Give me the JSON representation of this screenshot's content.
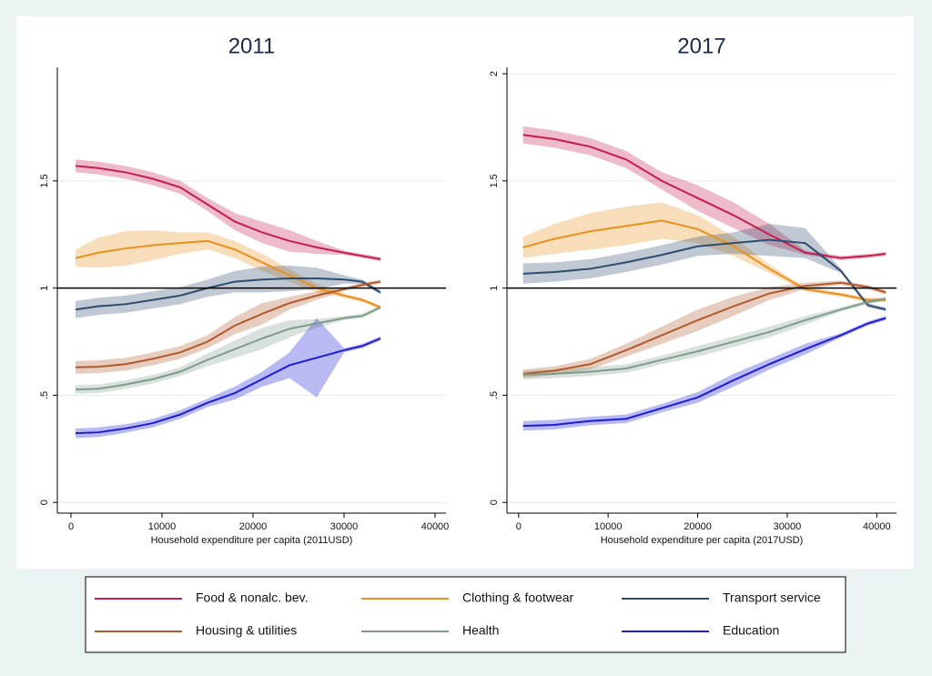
{
  "chart_data": [
    {
      "type": "line",
      "title": "2011",
      "xlabel": "Household expenditure per capita (2011USD)",
      "xlim": [
        -1500,
        41200
      ],
      "ylim": [
        -0.05,
        2.03
      ],
      "xticks": [
        0,
        10000,
        20000,
        30000,
        40000
      ],
      "yticks": [
        0,
        {
          "value": 0.5,
          "label": ".5"
        },
        1,
        1.5
      ],
      "hline": 1,
      "grid": true,
      "x": [
        500,
        3000,
        6000,
        9000,
        12000,
        15000,
        18000,
        21000,
        24000,
        27000,
        30000,
        32000,
        34000
      ],
      "series": [
        {
          "name": "Food & nonalc. bev.",
          "color": "#c41e4f",
          "values": [
            1.57,
            1.56,
            1.54,
            1.51,
            1.47,
            1.39,
            1.31,
            1.26,
            1.22,
            1.19,
            1.165,
            1.15,
            1.135
          ],
          "lower": [
            1.54,
            1.53,
            1.51,
            1.48,
            1.44,
            1.36,
            1.27,
            1.21,
            1.17,
            1.16,
            1.155,
            1.14,
            1.125
          ],
          "upper": [
            1.6,
            1.59,
            1.57,
            1.54,
            1.5,
            1.42,
            1.35,
            1.31,
            1.27,
            1.22,
            1.175,
            1.16,
            1.145
          ]
        },
        {
          "name": "Clothing & footwear",
          "color": "#e8901a",
          "values": [
            1.14,
            1.165,
            1.185,
            1.2,
            1.21,
            1.22,
            1.18,
            1.12,
            1.06,
            1.0,
            0.965,
            0.945,
            0.91
          ],
          "lower": [
            1.1,
            1.095,
            1.105,
            1.13,
            1.16,
            1.18,
            1.14,
            1.08,
            1.03,
            0.98,
            0.955,
            0.935,
            0.9
          ],
          "upper": [
            1.18,
            1.235,
            1.265,
            1.27,
            1.26,
            1.26,
            1.22,
            1.16,
            1.09,
            1.02,
            0.975,
            0.955,
            0.92
          ]
        },
        {
          "name": "Transport service",
          "color": "#2e4c6d",
          "values": [
            0.9,
            0.915,
            0.925,
            0.945,
            0.965,
            1.0,
            1.03,
            1.04,
            1.045,
            1.045,
            1.04,
            1.03,
            0.98
          ],
          "lower": [
            0.86,
            0.875,
            0.885,
            0.905,
            0.925,
            0.96,
            0.98,
            0.98,
            0.985,
            0.995,
            1.02,
            1.02,
            0.97
          ],
          "upper": [
            0.94,
            0.955,
            0.965,
            0.985,
            1.005,
            1.04,
            1.08,
            1.1,
            1.105,
            1.095,
            1.06,
            1.04,
            0.99
          ]
        },
        {
          "name": "Housing & utilities",
          "color": "#b05a2c",
          "values": [
            0.63,
            0.633,
            0.645,
            0.67,
            0.7,
            0.75,
            0.825,
            0.88,
            0.93,
            0.965,
            0.995,
            1.015,
            1.03
          ],
          "lower": [
            0.6,
            0.603,
            0.615,
            0.64,
            0.67,
            0.72,
            0.785,
            0.83,
            0.9,
            0.945,
            0.985,
            1.005,
            1.02
          ],
          "upper": [
            0.66,
            0.663,
            0.675,
            0.7,
            0.73,
            0.78,
            0.865,
            0.93,
            0.96,
            0.985,
            1.005,
            1.025,
            1.04
          ]
        },
        {
          "name": "Health",
          "color": "#7f9c8a",
          "values": [
            0.527,
            0.53,
            0.55,
            0.575,
            0.61,
            0.665,
            0.715,
            0.765,
            0.81,
            0.835,
            0.86,
            0.87,
            0.91
          ],
          "lower": [
            0.507,
            0.51,
            0.53,
            0.555,
            0.59,
            0.635,
            0.675,
            0.715,
            0.77,
            0.815,
            0.85,
            0.86,
            0.9
          ],
          "upper": [
            0.547,
            0.55,
            0.57,
            0.595,
            0.63,
            0.695,
            0.755,
            0.815,
            0.85,
            0.855,
            0.87,
            0.88,
            0.92
          ]
        },
        {
          "name": "Education",
          "color": "#1c1cd6",
          "values": [
            0.323,
            0.327,
            0.345,
            0.37,
            0.41,
            0.465,
            0.51,
            0.575,
            0.64,
            0.675,
            0.71,
            0.73,
            0.765
          ],
          "lower": [
            0.3,
            0.305,
            0.325,
            0.35,
            0.39,
            0.445,
            0.48,
            0.54,
            0.58,
            0.49,
            0.7,
            0.72,
            0.755
          ],
          "upper": [
            0.345,
            0.35,
            0.365,
            0.39,
            0.43,
            0.485,
            0.54,
            0.61,
            0.7,
            0.86,
            0.72,
            0.74,
            0.775
          ]
        }
      ]
    },
    {
      "type": "line",
      "title": "2017",
      "xlabel": "Household expenditure per capita (2017USD)",
      "xlim": [
        -1300,
        42200
      ],
      "ylim": [
        -0.05,
        2.03
      ],
      "xticks": [
        0,
        10000,
        20000,
        30000,
        40000
      ],
      "yticks": [
        0,
        {
          "value": 0.5,
          "label": ".5"
        },
        1,
        1.5,
        2
      ],
      "hline": 1,
      "grid": true,
      "x": [
        500,
        4000,
        8000,
        12000,
        16000,
        20000,
        24000,
        28000,
        32000,
        36000,
        39000,
        41000
      ],
      "series": [
        {
          "name": "Food & nonalc. bev.",
          "color": "#c41e4f",
          "values": [
            1.715,
            1.695,
            1.66,
            1.6,
            1.5,
            1.42,
            1.34,
            1.25,
            1.165,
            1.14,
            1.15,
            1.16
          ],
          "lower": [
            1.675,
            1.655,
            1.62,
            1.56,
            1.46,
            1.36,
            1.28,
            1.2,
            1.155,
            1.13,
            1.14,
            1.15
          ],
          "upper": [
            1.755,
            1.735,
            1.7,
            1.64,
            1.54,
            1.48,
            1.4,
            1.3,
            1.175,
            1.15,
            1.16,
            1.17
          ]
        },
        {
          "name": "Clothing & footwear",
          "color": "#e8901a",
          "values": [
            1.19,
            1.23,
            1.265,
            1.29,
            1.315,
            1.275,
            1.195,
            1.09,
            0.995,
            0.97,
            0.945,
            0.945
          ],
          "lower": [
            1.14,
            1.16,
            1.18,
            1.2,
            1.23,
            1.21,
            1.15,
            1.07,
            0.985,
            0.96,
            0.935,
            0.935
          ],
          "upper": [
            1.24,
            1.3,
            1.35,
            1.38,
            1.4,
            1.34,
            1.24,
            1.11,
            1.005,
            0.98,
            0.955,
            0.955
          ]
        },
        {
          "name": "Transport service",
          "color": "#2e4c6d",
          "values": [
            1.067,
            1.075,
            1.09,
            1.12,
            1.155,
            1.195,
            1.21,
            1.225,
            1.21,
            1.08,
            0.92,
            0.9
          ],
          "lower": [
            1.02,
            1.03,
            1.045,
            1.075,
            1.11,
            1.15,
            1.16,
            1.15,
            1.14,
            1.07,
            0.91,
            0.89
          ],
          "upper": [
            1.115,
            1.12,
            1.135,
            1.165,
            1.2,
            1.24,
            1.26,
            1.3,
            1.28,
            1.09,
            0.93,
            0.91
          ]
        },
        {
          "name": "Housing & utilities",
          "color": "#b05a2c",
          "values": [
            0.6,
            0.615,
            0.645,
            0.71,
            0.78,
            0.85,
            0.915,
            0.975,
            1.01,
            1.025,
            1.005,
            0.98
          ],
          "lower": [
            0.58,
            0.595,
            0.62,
            0.68,
            0.74,
            0.8,
            0.87,
            0.945,
            0.995,
            1.015,
            0.995,
            0.97
          ],
          "upper": [
            0.62,
            0.635,
            0.67,
            0.74,
            0.82,
            0.9,
            0.96,
            1.005,
            1.025,
            1.035,
            1.015,
            0.99
          ]
        },
        {
          "name": "Health",
          "color": "#7f9c8a",
          "values": [
            0.595,
            0.6,
            0.61,
            0.625,
            0.665,
            0.705,
            0.75,
            0.795,
            0.85,
            0.9,
            0.935,
            0.95
          ],
          "lower": [
            0.575,
            0.58,
            0.59,
            0.605,
            0.645,
            0.68,
            0.725,
            0.77,
            0.83,
            0.89,
            0.925,
            0.94
          ],
          "upper": [
            0.615,
            0.62,
            0.63,
            0.645,
            0.685,
            0.73,
            0.775,
            0.82,
            0.87,
            0.91,
            0.945,
            0.96
          ]
        },
        {
          "name": "Education",
          "color": "#1c1cd6",
          "values": [
            0.357,
            0.362,
            0.38,
            0.39,
            0.44,
            0.49,
            0.57,
            0.645,
            0.715,
            0.78,
            0.835,
            0.86
          ],
          "lower": [
            0.335,
            0.34,
            0.36,
            0.37,
            0.42,
            0.465,
            0.54,
            0.62,
            0.69,
            0.77,
            0.825,
            0.85
          ],
          "upper": [
            0.38,
            0.385,
            0.4,
            0.41,
            0.46,
            0.515,
            0.6,
            0.67,
            0.74,
            0.79,
            0.845,
            0.87
          ]
        }
      ]
    }
  ]
}
